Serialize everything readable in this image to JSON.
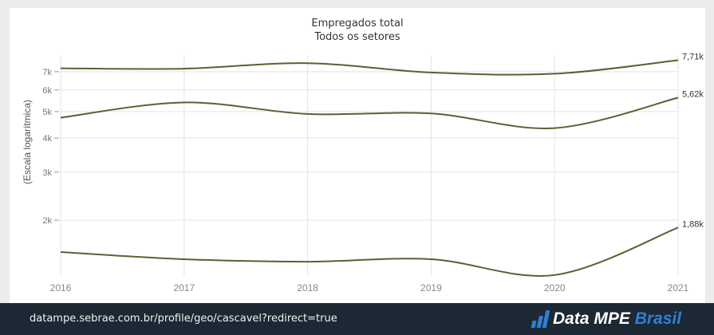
{
  "chart_data": {
    "type": "line",
    "title": "Empregados total",
    "subtitle": "Todos os setores",
    "ylabel": "(Escala logarítmica)",
    "xlabel": "",
    "yscale": "log",
    "x": [
      2016,
      2017,
      2018,
      2019,
      2020,
      2021
    ],
    "x_tick_labels": [
      "2016",
      "2017",
      "2018",
      "2019",
      "2020",
      "2021"
    ],
    "y_ticks": [
      2000,
      3000,
      4000,
      5000,
      6000,
      7000
    ],
    "y_tick_labels": [
      "2k",
      "3k",
      "4k",
      "5k",
      "6k",
      "7k"
    ],
    "ylim": [
      1250,
      8000
    ],
    "grid": true,
    "series_color": "#5a6132",
    "series": [
      {
        "values": [
          7200,
          7180,
          7520,
          6950,
          6880,
          7710
        ],
        "end_label": "7,71k"
      },
      {
        "values": [
          4750,
          5400,
          4900,
          4920,
          4350,
          5620
        ],
        "end_label": "5,62k"
      },
      {
        "values": [
          1530,
          1440,
          1410,
          1440,
          1260,
          1880
        ],
        "end_label": "1,88k"
      }
    ]
  },
  "footer": {
    "url": "datampe.sebrae.com.br/profile/geo/cascavel?redirect=true",
    "brand_main": "Data MPE ",
    "brand_accent": "Brasil",
    "brand_icon": "bar-chart-icon"
  }
}
